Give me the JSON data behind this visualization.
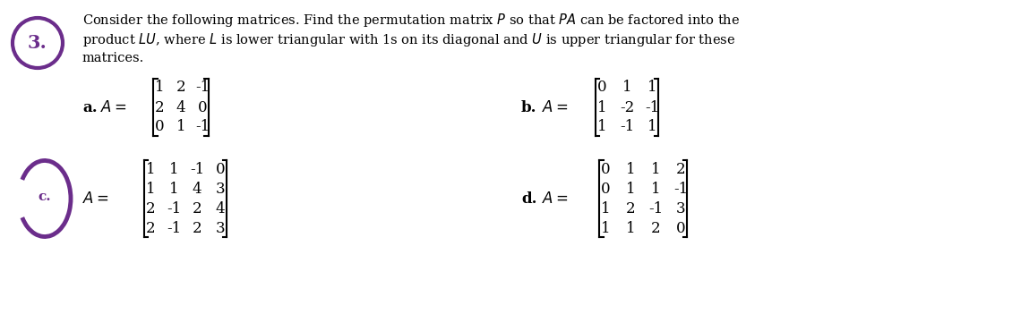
{
  "title_number": "3.",
  "title_line1": "Consider the following matrices. Find the permutation matrix $P$ so that $PA$ can be factored into the",
  "title_line2": "product $LU$, where $L$ is lower triangular with 1s on its diagonal and $U$ is upper triangular for these",
  "title_line3": "matrices.",
  "circle_color": "#6B2D8B",
  "bg_color": "#ffffff",
  "text_color": "#000000",
  "matrix_a": [
    [
      1,
      2,
      -1
    ],
    [
      2,
      4,
      0
    ],
    [
      0,
      1,
      -1
    ]
  ],
  "matrix_b": [
    [
      0,
      1,
      1
    ],
    [
      1,
      -2,
      -1
    ],
    [
      1,
      -1,
      1
    ]
  ],
  "matrix_c": [
    [
      1,
      1,
      -1,
      0
    ],
    [
      1,
      1,
      4,
      3
    ],
    [
      2,
      -1,
      2,
      4
    ],
    [
      2,
      -1,
      2,
      3
    ]
  ],
  "matrix_d": [
    [
      0,
      1,
      1,
      2
    ],
    [
      0,
      1,
      1,
      -1
    ],
    [
      1,
      2,
      -1,
      3
    ],
    [
      1,
      1,
      2,
      0
    ]
  ]
}
